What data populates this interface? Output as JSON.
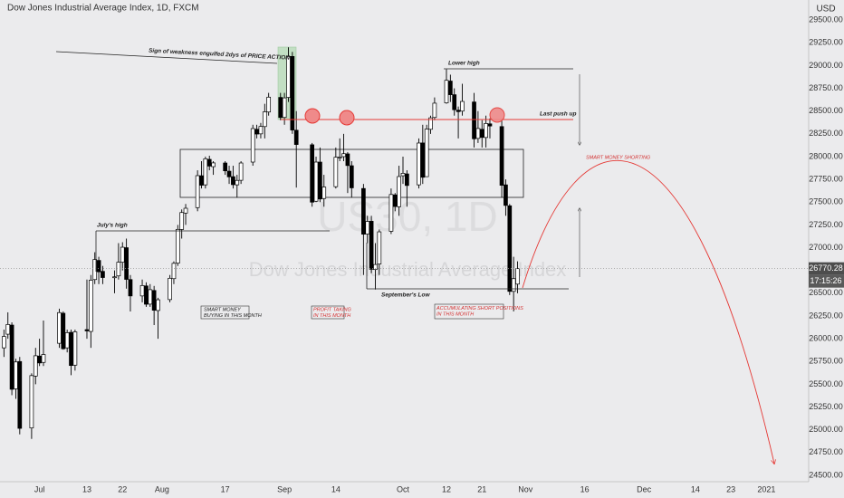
{
  "chart_data": {
    "type": "candlestick",
    "title": "Dow Jones Industrial Average Index, 1D, FXCM",
    "y_label": "USD",
    "watermark": {
      "symbol": "US30, 1D",
      "description": "Dow Jones Industrial Average Index"
    },
    "up_color": "#ffffff",
    "down_color": "#000000",
    "wick_color": "#000000",
    "grid": false,
    "xlim": [
      "06-21",
      "01-11"
    ],
    "ylim": [
      24430,
      29720
    ],
    "xticks": [
      {
        "value": "07-01",
        "label": "Jul"
      },
      {
        "value": "07-13",
        "label": "13"
      },
      {
        "value": "07-22",
        "label": "22"
      },
      {
        "value": "08-01",
        "label": "Aug"
      },
      {
        "value": "08-17",
        "label": "17"
      },
      {
        "value": "09-01",
        "label": "Sep"
      },
      {
        "value": "09-14",
        "label": "14"
      },
      {
        "value": "10-01",
        "label": "Oct"
      },
      {
        "value": "10-12",
        "label": "12"
      },
      {
        "value": "10-21",
        "label": "21"
      },
      {
        "value": "11-01",
        "label": "Nov"
      },
      {
        "value": "11-16",
        "label": "16"
      },
      {
        "value": "12-01",
        "label": "Dec"
      },
      {
        "value": "12-14",
        "label": "14"
      },
      {
        "value": "12-23",
        "label": "23"
      },
      {
        "value": "01-01",
        "label": "2021"
      }
    ],
    "yticks": [
      {
        "value": 24500,
        "label": "24500.00"
      },
      {
        "value": 24750,
        "label": "24750.00"
      },
      {
        "value": 25000,
        "label": "25000.00"
      },
      {
        "value": 25250,
        "label": "25250.00"
      },
      {
        "value": 25500,
        "label": "25500.00"
      },
      {
        "value": 25750,
        "label": "25750.00"
      },
      {
        "value": 26000,
        "label": "26000.00"
      },
      {
        "value": 26250,
        "label": "26250.00"
      },
      {
        "value": 26500,
        "label": "26500.00"
      },
      {
        "value": 27000,
        "label": "27000.00"
      },
      {
        "value": 27250,
        "label": "27250.00"
      },
      {
        "value": 27500,
        "label": "27500.00"
      },
      {
        "value": 27750,
        "label": "27750.00"
      },
      {
        "value": 28000,
        "label": "28000.00"
      },
      {
        "value": 28250,
        "label": "28250.00"
      },
      {
        "value": 28500,
        "label": "28500.00"
      },
      {
        "value": 28750,
        "label": "28750.00"
      },
      {
        "value": 29000,
        "label": "29000.00"
      },
      {
        "value": 29250,
        "label": "29250.00"
      },
      {
        "value": 29500,
        "label": "29500.00"
      }
    ],
    "x": [
      "06-22",
      "06-23",
      "06-24",
      "06-25",
      "06-26",
      "06-29",
      "06-30",
      "07-01",
      "07-02",
      "07-06",
      "07-07",
      "07-08",
      "07-09",
      "07-10",
      "07-13",
      "07-14",
      "07-15",
      "07-16",
      "07-17",
      "07-20",
      "07-21",
      "07-22",
      "07-23",
      "07-24",
      "07-27",
      "07-28",
      "07-29",
      "07-30",
      "07-31",
      "08-03",
      "08-04",
      "08-05",
      "08-06",
      "08-07",
      "08-10",
      "08-11",
      "08-12",
      "08-13",
      "08-14",
      "08-17",
      "08-18",
      "08-19",
      "08-20",
      "08-21",
      "08-24",
      "08-25",
      "08-26",
      "08-27",
      "08-28",
      "08-31",
      "09-01",
      "09-02",
      "09-03",
      "09-04",
      "09-08",
      "09-09",
      "09-10",
      "09-11",
      "09-14",
      "09-15",
      "09-16",
      "09-17",
      "09-18",
      "09-21",
      "09-22",
      "09-23",
      "09-24",
      "09-25",
      "09-28",
      "09-29",
      "09-30",
      "10-01",
      "10-02",
      "10-05",
      "10-06",
      "10-07",
      "10-08",
      "10-09",
      "10-12",
      "10-13",
      "10-14",
      "10-15",
      "10-16",
      "10-19",
      "10-20",
      "10-21",
      "10-22",
      "10-23",
      "10-26",
      "10-27",
      "10-28",
      "10-29",
      "10-30"
    ],
    "open": [
      25900,
      26050,
      26150,
      25450,
      25750,
      25020,
      25590,
      25810,
      25740,
      25950,
      26280,
      25900,
      26070,
      25710,
      26100,
      26080,
      26650,
      26860,
      26740,
      26670,
      26690,
      26840,
      27000,
      26650,
      26470,
      26580,
      26380,
      26530,
      26310,
      26430,
      26660,
      26830,
      27200,
      27380,
      27440,
      27790,
      27690,
      27970,
      27890,
      27930,
      27840,
      27780,
      27690,
      27740,
      27940,
      28300,
      28250,
      28330,
      28490,
      28650,
      28430,
      28650,
      29100,
      28290,
      28130,
      27510,
      27940,
      27540,
      27670,
      27990,
      28000,
      28030,
      27900,
      27650,
      27150,
      27290,
      26760,
      26820,
      27180,
      27580,
      27450,
      27790,
      27810,
      27690,
      28150,
      27780,
      28300,
      28430,
      28590,
      28830,
      28680,
      28510,
      28500,
      28600,
      28200,
      28300,
      28210,
      28360,
      28330,
      27690,
      27460,
      26520,
      26600
    ],
    "high": [
      26100,
      26290,
      26180,
      25780,
      25800,
      25620,
      25900,
      26000,
      26200,
      26330,
      26300,
      26100,
      26100,
      26100,
      26650,
      26700,
      26950,
      26900,
      26800,
      26750,
      27050,
      27060,
      27100,
      26700,
      26650,
      26620,
      26600,
      26580,
      26450,
      26700,
      26850,
      27250,
      27420,
      27480,
      27850,
      27950,
      28000,
      28010,
      27950,
      27950,
      27900,
      27900,
      27800,
      27950,
      28350,
      28350,
      28370,
      28580,
      28700,
      28700,
      28700,
      29200,
      29150,
      28500,
      28150,
      28000,
      28100,
      27800,
      28100,
      28200,
      28250,
      28050,
      27950,
      27700,
      27350,
      27350,
      27050,
      27200,
      27650,
      27600,
      27900,
      28000,
      27850,
      28200,
      28350,
      28350,
      28450,
      28650,
      28960,
      28900,
      28750,
      28550,
      28800,
      28700,
      28500,
      28400,
      28450,
      28420,
      28400,
      27750,
      27480,
      26900,
      26850
    ],
    "low": [
      25800,
      26000,
      25380,
      25340,
      24950,
      24900,
      25500,
      25700,
      25700,
      25900,
      25880,
      25850,
      25600,
      25650,
      26000,
      25900,
      26600,
      26600,
      26600,
      26500,
      26650,
      26750,
      26550,
      26300,
      26400,
      26350,
      26350,
      26150,
      26000,
      26400,
      26600,
      26800,
      27100,
      27250,
      27400,
      27650,
      27650,
      27850,
      27800,
      27800,
      27700,
      27650,
      27550,
      27700,
      27900,
      28200,
      28200,
      28200,
      28450,
      28400,
      28350,
      28600,
      28250,
      27660,
      27450,
      27500,
      27500,
      27450,
      27650,
      27950,
      27950,
      27600,
      27550,
      26700,
      27050,
      26720,
      26540,
      26700,
      27150,
      27400,
      27350,
      27700,
      27450,
      27650,
      27700,
      27780,
      28250,
      28400,
      28580,
      28600,
      28450,
      28200,
      28450,
      28100,
      28150,
      28100,
      28100,
      28200,
      27550,
      27350,
      26480,
      26300,
      26500
    ],
    "close": [
      26025,
      26156,
      25445,
      25745,
      25016,
      25595,
      25813,
      25734,
      25827,
      26287,
      25890,
      26067,
      25706,
      26075,
      26086,
      26643,
      26870,
      26735,
      26672,
      26680,
      26840,
      27005,
      26652,
      26470,
      26584,
      26379,
      26539,
      26313,
      26428,
      26664,
      26828,
      27201,
      27386,
      27433,
      27791,
      27686,
      27976,
      27896,
      27931,
      27844,
      27778,
      27692,
      27739,
      27930,
      28308,
      28248,
      28331,
      28492,
      28653,
      28430,
      28645,
      29100,
      28292,
      28133,
      27500,
      27940,
      27535,
      27666,
      27993,
      27995,
      28032,
      27902,
      27657,
      27148,
      27288,
      26763,
      26815,
      27174,
      27584,
      27452,
      27781,
      27817,
      27683,
      28149,
      27773,
      28303,
      28426,
      28587,
      28838,
      28680,
      28515,
      28494,
      28606,
      28196,
      28309,
      28211,
      28364,
      28336,
      27685,
      27464,
      26520,
      26660,
      26770
    ],
    "last_price": 26770.28,
    "countdown": "17:15:26",
    "annotations": {
      "weakness": "Sign of weakness engulfed 2dys of PRICE ACTION",
      "lower_high": "Lower high",
      "last_push": "Last push up",
      "julys_high": "July's high",
      "september_low": "September's Low",
      "smart_buying": [
        "SMART MONEY",
        "BUYING IN THIS MONTH"
      ],
      "profit_taking": [
        "PROFIT TAKING",
        "IN THIS MONTH"
      ],
      "accumulating": [
        "ACCUMULATING SHORT POSITIONS",
        "IN THIS MONTH"
      ],
      "shorting": "SMART MONEY SHORTING"
    }
  }
}
